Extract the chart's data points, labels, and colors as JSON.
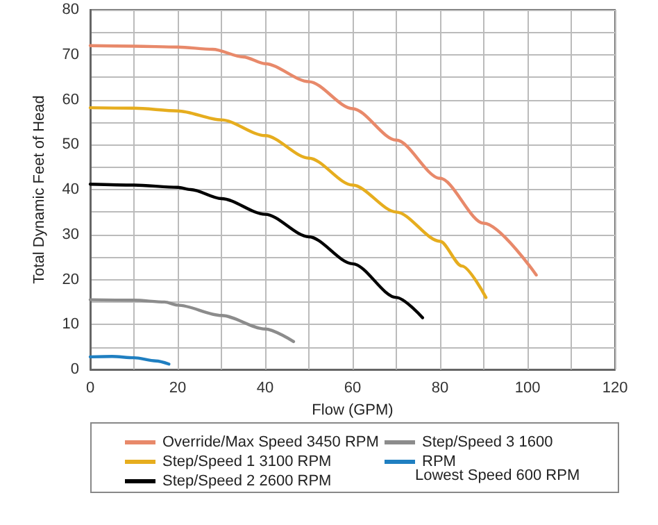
{
  "chart_data": {
    "type": "line",
    "xlabel": "Flow (GPM)",
    "ylabel": "Total Dynamic Feet of Head",
    "xlim": [
      0,
      120
    ],
    "ylim": [
      0,
      80
    ],
    "xticks": [
      0,
      {
        "value": 10,
        "label": null
      },
      20,
      {
        "value": 30,
        "label": null
      },
      40,
      {
        "value": 50,
        "label": null
      },
      60,
      {
        "value": 70,
        "label": null
      },
      80,
      {
        "value": 90,
        "label": null
      },
      100,
      {
        "value": 110,
        "label": null
      },
      120
    ],
    "yticks": [
      0,
      {
        "value": 5,
        "label": null
      },
      10,
      {
        "value": 15,
        "label": null
      },
      20,
      {
        "value": 25,
        "label": null
      },
      30,
      {
        "value": 35,
        "label": null
      },
      40,
      {
        "value": 45,
        "label": null
      },
      50,
      {
        "value": 55,
        "label": null
      },
      60,
      {
        "value": 65,
        "label": null
      },
      70,
      {
        "value": 75,
        "label": null
      },
      80
    ],
    "grid": true,
    "legend": "bottom",
    "series": [
      {
        "name": "Override/Max Speed 3450 RPM",
        "color": "#e8896a",
        "x": [
          0,
          10,
          20,
          28,
          35,
          40,
          50,
          60,
          70,
          80,
          90,
          102
        ],
        "values": [
          72,
          71.9,
          71.7,
          71.2,
          69.5,
          68,
          64,
          58,
          51,
          42.5,
          32.5,
          21
        ]
      },
      {
        "name": "Step/Speed 1 3100 RPM",
        "color": "#e6ad1e",
        "x": [
          0,
          10,
          20,
          30,
          40,
          50,
          60,
          70,
          80,
          85,
          90.5
        ],
        "values": [
          58.2,
          58.1,
          57.5,
          55.5,
          52,
          47,
          41,
          35,
          28.5,
          23,
          16
        ]
      },
      {
        "name": "Step/Speed 2 2600 RPM",
        "color": "#000000",
        "x": [
          0,
          10,
          20,
          23,
          30,
          40,
          50,
          60,
          70,
          76
        ],
        "values": [
          41.2,
          41,
          40.5,
          40,
          38,
          34.5,
          29.5,
          23.5,
          16,
          11.5
        ]
      },
      {
        "name": "Step/Speed 3 1600",
        "color": "#8c8c8c",
        "x": [
          0,
          10,
          17,
          20,
          30,
          40,
          46.5
        ],
        "values": [
          15.5,
          15.4,
          15,
          14.3,
          12,
          9,
          6.2
        ]
      },
      {
        "name": "RPM",
        "color": "#1f7fc1",
        "x": [
          0,
          5,
          10,
          15,
          18
        ],
        "values": [
          2.8,
          2.9,
          2.6,
          1.9,
          1.2
        ]
      }
    ],
    "annotations": [
      "Lowest Speed 600 RPM"
    ]
  }
}
